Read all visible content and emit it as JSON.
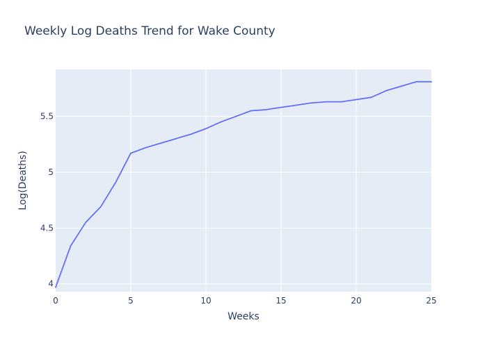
{
  "chart_data": {
    "type": "line",
    "title": "Weekly Log Deaths Trend for Wake County",
    "xlabel": "Weeks",
    "ylabel": "Log(Deaths)",
    "xlim": [
      0,
      25
    ],
    "ylim": [
      3.93,
      5.92
    ],
    "x_ticks": [
      0,
      5,
      10,
      15,
      20,
      25
    ],
    "x_tick_labels": [
      "0",
      "5",
      "10",
      "15",
      "20",
      "25"
    ],
    "y_ticks": [
      4,
      4.5,
      5,
      5.5
    ],
    "y_tick_labels": [
      "4",
      "4.5",
      "5",
      "5.5"
    ],
    "grid": true,
    "series": [
      {
        "color": "#636efa",
        "x": [
          0,
          1,
          2,
          3,
          4,
          5,
          6,
          7,
          8,
          9,
          10,
          11,
          12,
          13,
          14,
          15,
          16,
          17,
          18,
          19,
          20,
          21,
          22,
          23,
          24,
          25
        ],
        "y": [
          3.97,
          4.34,
          4.55,
          4.69,
          4.91,
          5.17,
          5.22,
          5.26,
          5.3,
          5.34,
          5.39,
          5.45,
          5.5,
          5.55,
          5.56,
          5.58,
          5.6,
          5.62,
          5.63,
          5.63,
          5.65,
          5.67,
          5.73,
          5.77,
          5.81,
          5.81
        ]
      }
    ]
  },
  "colors": {
    "plot_background": "#e5ecf6",
    "grid": "#ffffff",
    "text": "#2a3f5f",
    "line": "#636efa"
  }
}
